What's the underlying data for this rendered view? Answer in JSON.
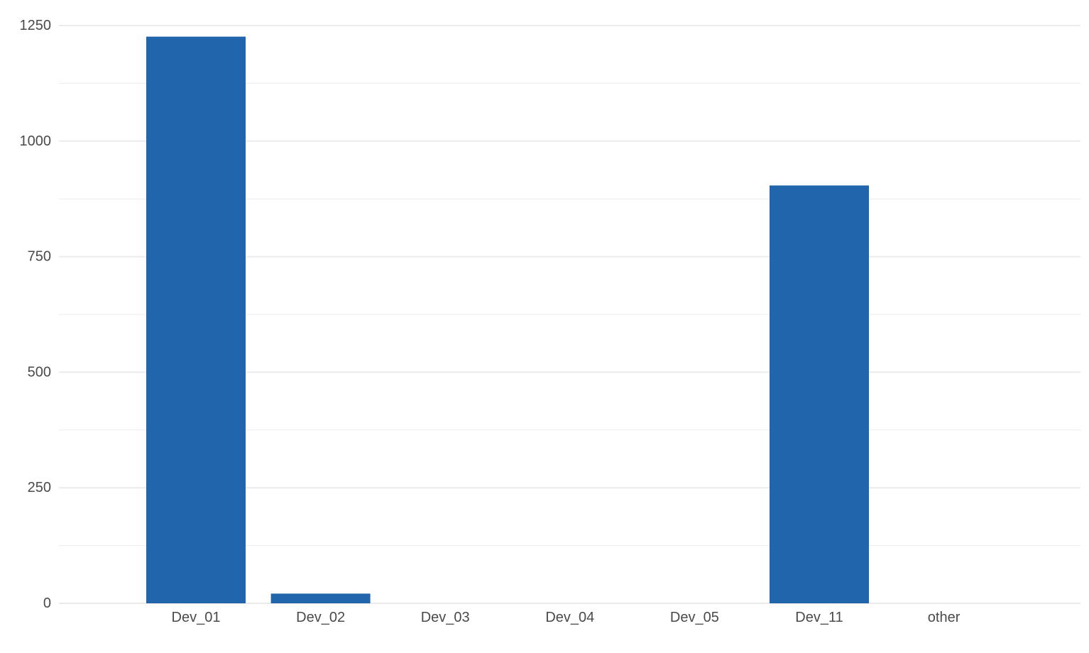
{
  "chart_data": {
    "type": "bar",
    "title": "",
    "xlabel": "",
    "ylabel": "",
    "categories": [
      "Dev_01",
      "Dev_02",
      "Dev_03",
      "Dev_04",
      "Dev_05",
      "Dev_11",
      "other"
    ],
    "values": [
      1226,
      21,
      0,
      0,
      0,
      904,
      0
    ],
    "ylim": [
      0,
      1250
    ],
    "y_ticks": [
      0,
      250,
      500,
      750,
      1000,
      1250
    ],
    "y_tick_labels": [
      "0",
      "250",
      "500",
      "750",
      "1000",
      "1250"
    ],
    "grid": true,
    "legend": "none",
    "bar_color": "#2166ac",
    "grid_color": "#ebebeb",
    "text_color": "#4a4a4a"
  }
}
